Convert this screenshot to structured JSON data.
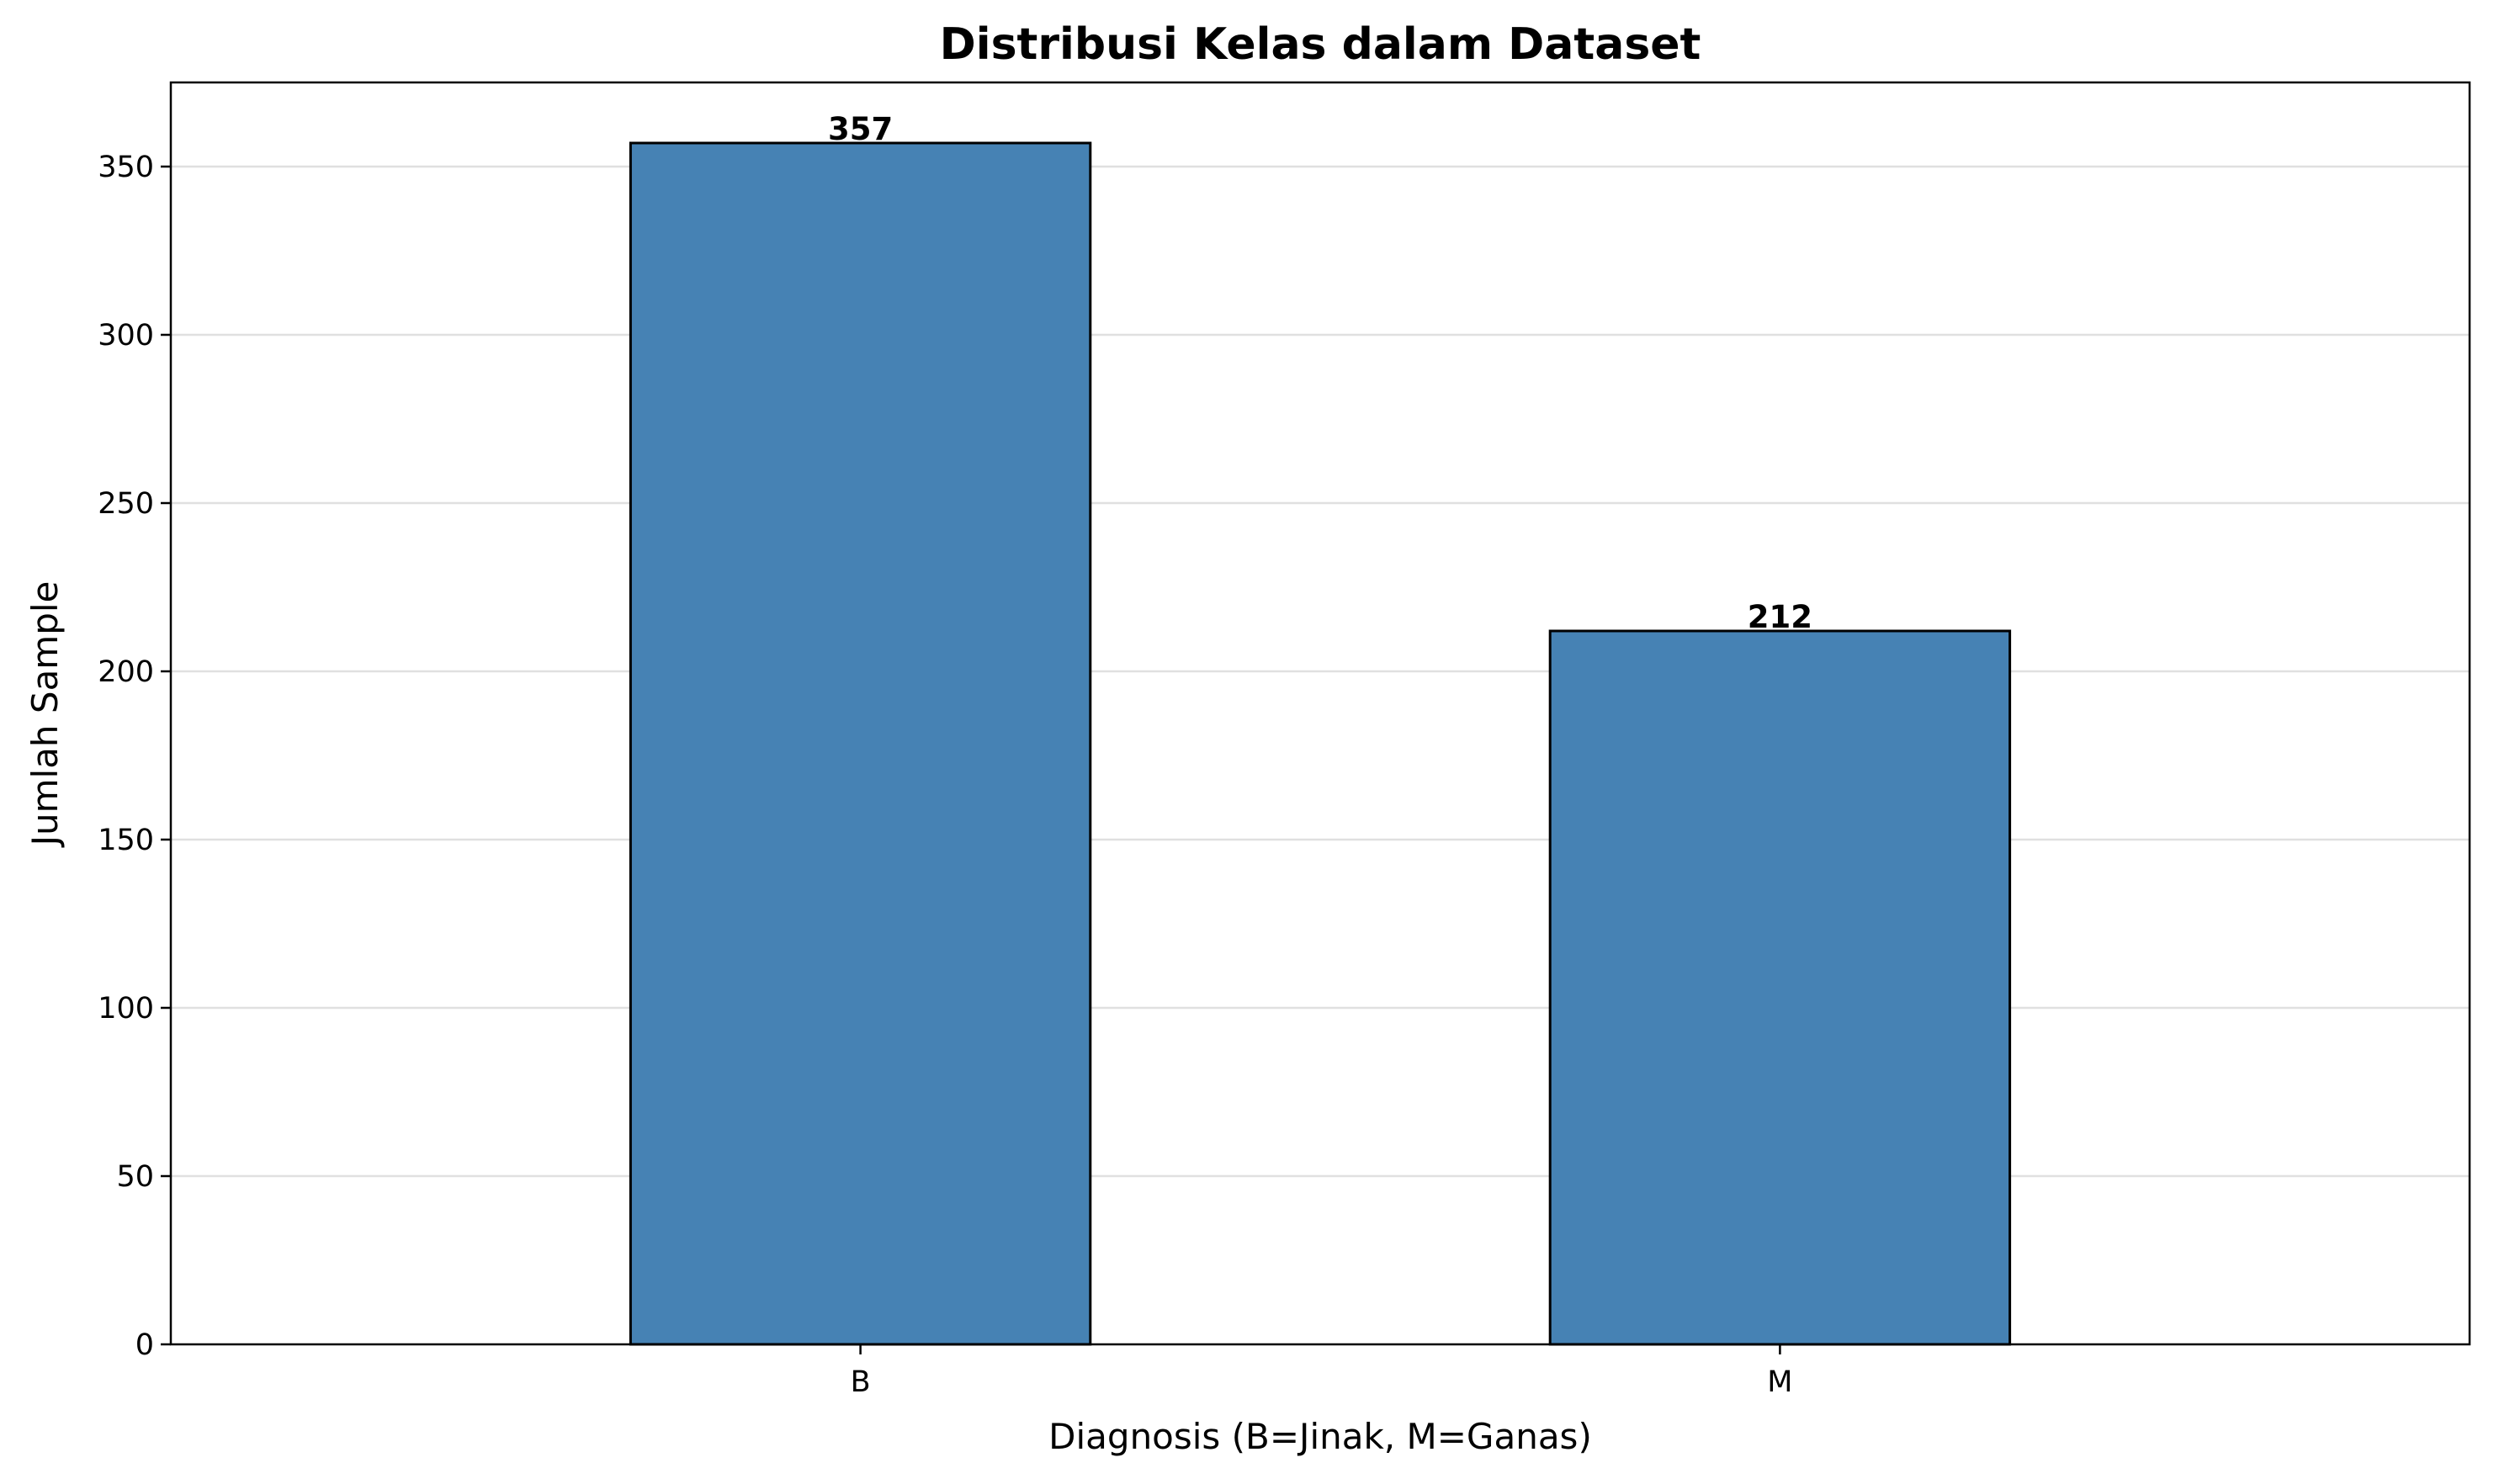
{
  "chart_data": {
    "type": "bar",
    "title": "Distribusi Kelas dalam Dataset",
    "xlabel": "Diagnosis (B=Jinak, M=Ganas)",
    "ylabel": "Jumlah Sample",
    "categories": [
      "B",
      "M"
    ],
    "values": [
      357,
      212
    ],
    "data_labels": [
      "357",
      "212"
    ],
    "ylim": [
      0,
      375
    ],
    "yticks": [
      0,
      50,
      100,
      150,
      200,
      250,
      300,
      350
    ],
    "ytick_labels": [
      "0",
      "50",
      "100",
      "150",
      "200",
      "250",
      "300",
      "350"
    ],
    "grid": "y-axis only",
    "legend": "none",
    "bar_color": "#4682b4",
    "edge_color": "#000000"
  }
}
